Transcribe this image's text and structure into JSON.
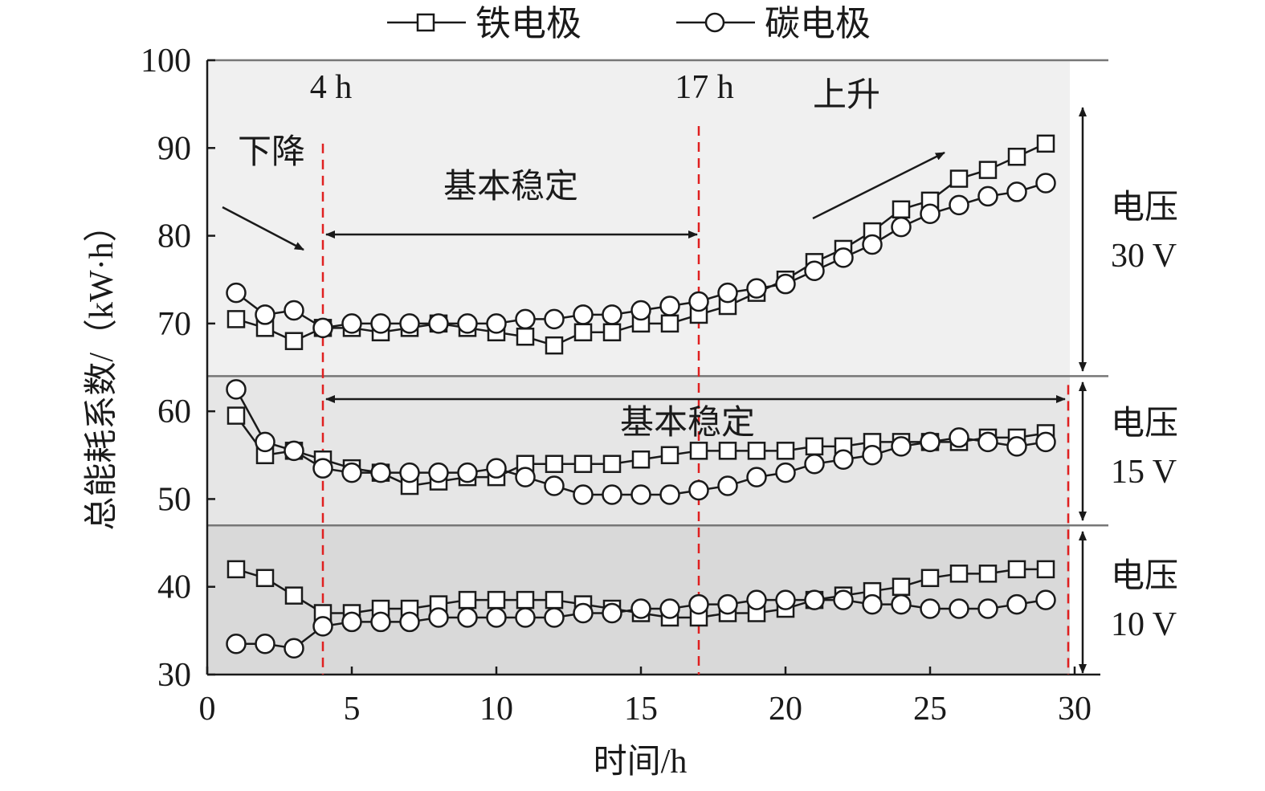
{
  "legend": {
    "iron": "铁电极",
    "carbon": "碳电极"
  },
  "axes": {
    "ylabel": "总能耗系数/（kW·h）",
    "xlabel": "时间/h"
  },
  "annotations": {
    "t4": "4 h",
    "t17": "17 h",
    "down": "下降",
    "up": "上升",
    "stable_30": "基本稳定",
    "stable_15": "基本稳定"
  },
  "bands": [
    {
      "line1": "电压",
      "line2": "30 V"
    },
    {
      "line1": "电压",
      "line2": "15 V"
    },
    {
      "line1": "电压",
      "line2": "10 V"
    }
  ],
  "colors": {
    "band_30": "#f0f0f0",
    "band_15": "#e6e6e6",
    "band_10": "#d9d9d9",
    "marker_line": "#e02020",
    "series": "#1a1a1a"
  },
  "chart_data": {
    "type": "line",
    "xlim": [
      0,
      30
    ],
    "ylim": [
      30,
      100
    ],
    "xticks": [
      0,
      5,
      10,
      15,
      20,
      25,
      30
    ],
    "yticks": [
      30,
      40,
      50,
      60,
      70,
      80,
      90,
      100
    ],
    "markers_x": [
      4,
      17,
      30
    ],
    "band_boundaries": [
      64,
      47
    ],
    "x": [
      1,
      2,
      3,
      4,
      5,
      6,
      7,
      8,
      9,
      10,
      11,
      12,
      13,
      14,
      15,
      16,
      17,
      18,
      19,
      20,
      21,
      22,
      23,
      24,
      25,
      26,
      27,
      28,
      29
    ],
    "series": [
      {
        "name": "铁电极",
        "voltage": "30 V",
        "marker": "square",
        "values": [
          70.5,
          69.5,
          68,
          69.5,
          69.5,
          69,
          69.5,
          70,
          69.5,
          69,
          68.5,
          67.5,
          69,
          69,
          70,
          70,
          71,
          72,
          73.5,
          75,
          77,
          78.5,
          80.5,
          83,
          84,
          86.5,
          87.5,
          89,
          90.5
        ]
      },
      {
        "name": "碳电极",
        "voltage": "30 V",
        "marker": "circle",
        "values": [
          73.5,
          71,
          71.5,
          69.5,
          70,
          70,
          70,
          70,
          70,
          70,
          70.5,
          70.5,
          71,
          71,
          71.5,
          72,
          72.5,
          73.5,
          74,
          74.5,
          76,
          77.5,
          79,
          81,
          82.5,
          83.5,
          84.5,
          85,
          86
        ]
      },
      {
        "name": "铁电极",
        "voltage": "15 V",
        "marker": "square",
        "values": [
          59.5,
          55,
          55.5,
          54.5,
          53.5,
          53,
          51.5,
          52,
          52.5,
          52.5,
          54,
          54,
          54,
          54,
          54.5,
          55,
          55.5,
          55.5,
          55.5,
          55.5,
          56,
          56,
          56.5,
          56.5,
          56.5,
          56.5,
          57,
          57,
          57.5
        ]
      },
      {
        "name": "碳电极",
        "voltage": "15 V",
        "marker": "circle",
        "values": [
          62.5,
          56.5,
          55.5,
          53.5,
          53,
          53,
          53,
          53,
          53,
          53.5,
          52.5,
          51.5,
          50.5,
          50.5,
          50.5,
          50.5,
          51,
          51.5,
          52.5,
          53,
          54,
          54.5,
          55,
          56,
          56.5,
          57,
          56.5,
          56,
          56.5
        ]
      },
      {
        "name": "铁电极",
        "voltage": "10 V",
        "marker": "square",
        "values": [
          42,
          41,
          39,
          37,
          37,
          37.5,
          37.5,
          38,
          38.5,
          38.5,
          38.5,
          38.5,
          38,
          37.5,
          37,
          36.5,
          36.5,
          37,
          37,
          37.5,
          38.5,
          39,
          39.5,
          40,
          41,
          41.5,
          41.5,
          42,
          42
        ]
      },
      {
        "name": "碳电极",
        "voltage": "10 V",
        "marker": "circle",
        "values": [
          33.5,
          33.5,
          33,
          35.5,
          36,
          36,
          36,
          36.5,
          36.5,
          36.5,
          36.5,
          36.5,
          37,
          37,
          37.5,
          37.5,
          38,
          38,
          38.5,
          38.5,
          38.5,
          38.5,
          38,
          38,
          37.5,
          37.5,
          37.5,
          38,
          38.5
        ]
      }
    ]
  }
}
